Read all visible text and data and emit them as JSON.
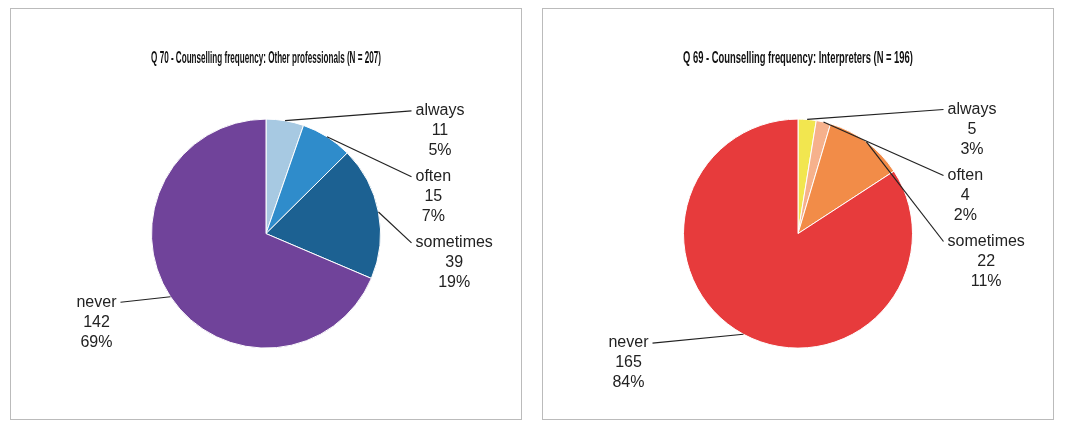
{
  "chart_data": [
    {
      "type": "pie",
      "title": "Q 70 - Counselling frequency: Other professionals (N = 207)",
      "categories": [
        "always",
        "often",
        "sometimes",
        "never"
      ],
      "values": [
        11,
        15,
        39,
        142
      ],
      "value_labels": [
        "11\n5%",
        "15\n7%",
        "39\n19%",
        "142\n69%"
      ],
      "colors": [
        "#a7c9e2",
        "#2f8ccb",
        "#1c6192",
        "#70439a"
      ]
    },
    {
      "type": "pie",
      "title": "Q 69 - Counselling frequency: Interpreters (N = 196)",
      "categories": [
        "always",
        "often",
        "sometimes",
        "never"
      ],
      "values": [
        5,
        4,
        22,
        165
      ],
      "value_labels": [
        "5\n3%",
        "4\n2%",
        "22\n11%",
        "165\n84%"
      ],
      "colors": [
        "#f2e64f",
        "#f6b18c",
        "#f28c48",
        "#e73b3c"
      ]
    }
  ]
}
